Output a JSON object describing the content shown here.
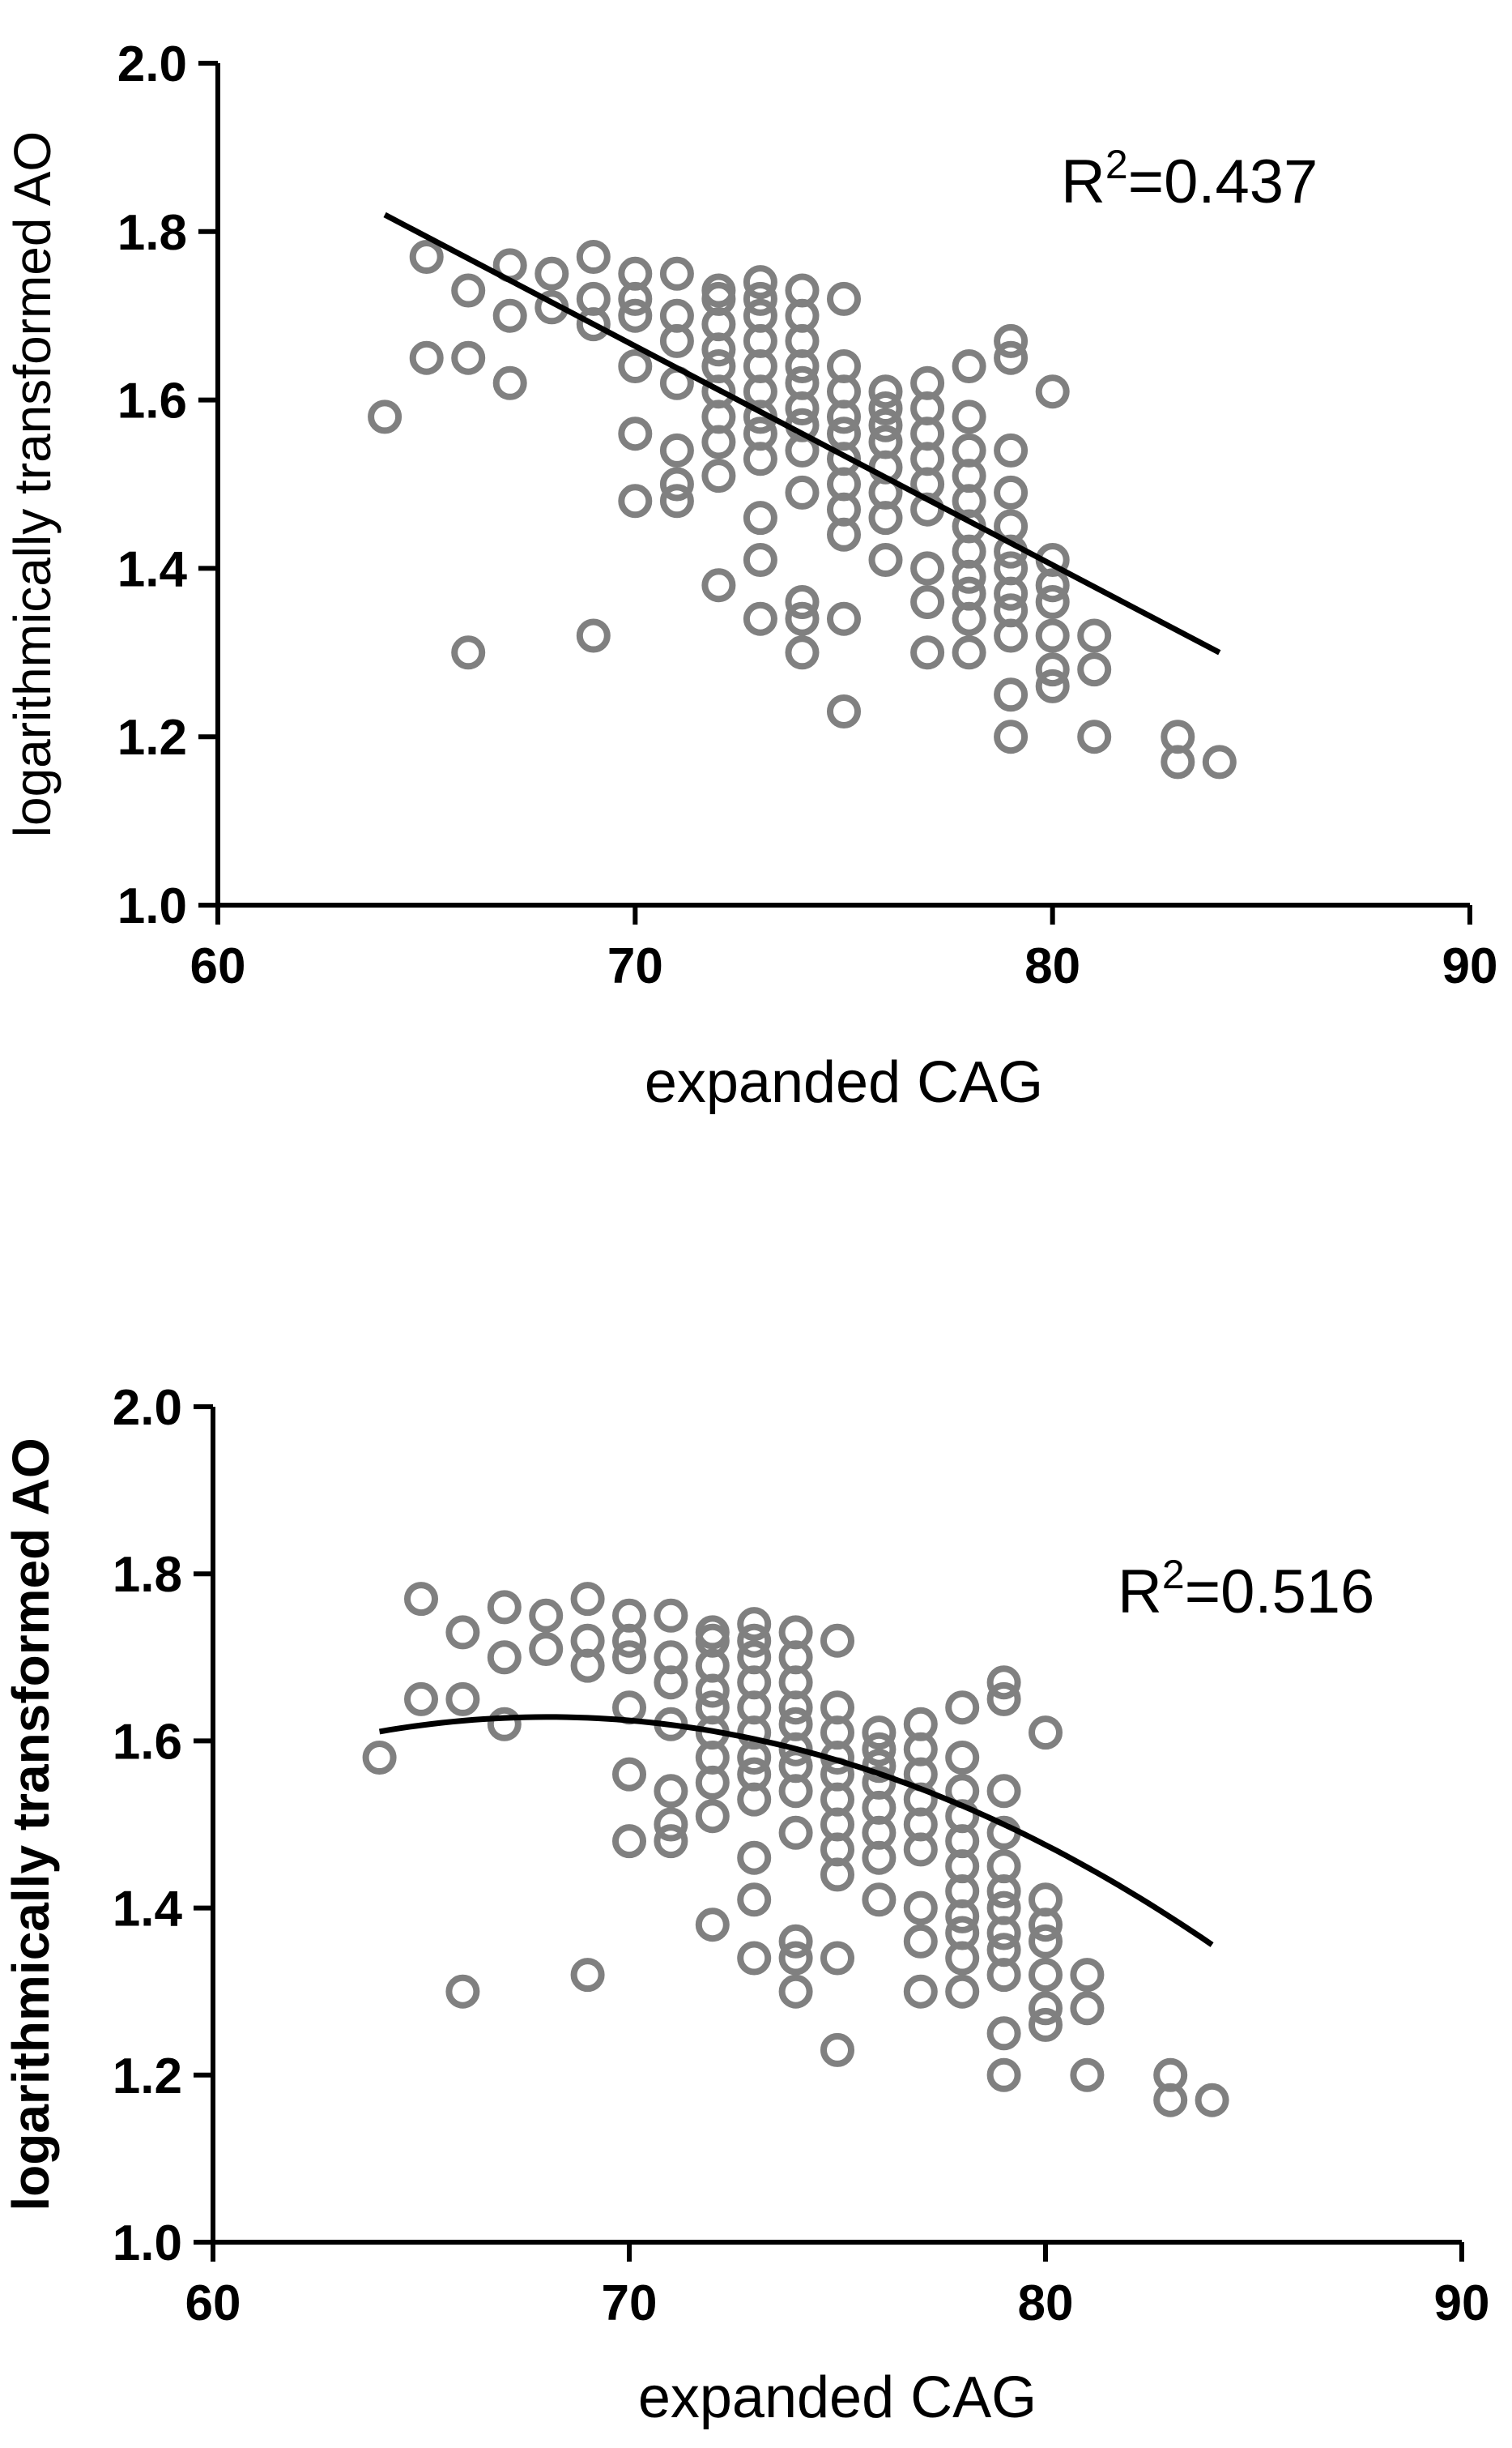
{
  "chart_data": [
    {
      "type": "scatter",
      "fit": "linear",
      "xlabel": "expanded CAG",
      "ylabel": "logarithmically transformed AO",
      "annotation": {
        "base": "R",
        "sup": "2",
        "rest": "=0.437"
      },
      "xlim": [
        60,
        90
      ],
      "ylim": [
        1.0,
        2.0
      ],
      "xticks": [
        "60",
        "70",
        "80",
        "90"
      ],
      "yticks": [
        "1.0",
        "1.2",
        "1.4",
        "1.6",
        "1.8",
        "2.0"
      ],
      "fit_coeffs": [
        3.484,
        -0.026
      ],
      "fit_range": [
        64,
        84
      ],
      "marker_color": "#808080",
      "line_color": "#000000",
      "points": [
        [
          64,
          1.58
        ],
        [
          65,
          1.77
        ],
        [
          65,
          1.65
        ],
        [
          66,
          1.73
        ],
        [
          66,
          1.65
        ],
        [
          66,
          1.3
        ],
        [
          67,
          1.76
        ],
        [
          67,
          1.7
        ],
        [
          67,
          1.62
        ],
        [
          68,
          1.75
        ],
        [
          68,
          1.71
        ],
        [
          69,
          1.77
        ],
        [
          69,
          1.72
        ],
        [
          69,
          1.69
        ],
        [
          69,
          1.32
        ],
        [
          70,
          1.75
        ],
        [
          70,
          1.72
        ],
        [
          70,
          1.7
        ],
        [
          70,
          1.64
        ],
        [
          70,
          1.56
        ],
        [
          70,
          1.48
        ],
        [
          71,
          1.75
        ],
        [
          71,
          1.7
        ],
        [
          71,
          1.67
        ],
        [
          71,
          1.62
        ],
        [
          71,
          1.54
        ],
        [
          71,
          1.5
        ],
        [
          71,
          1.48
        ],
        [
          72,
          1.73
        ],
        [
          72,
          1.72
        ],
        [
          72,
          1.69
        ],
        [
          72,
          1.66
        ],
        [
          72,
          1.64
        ],
        [
          72,
          1.61
        ],
        [
          72,
          1.58
        ],
        [
          72,
          1.55
        ],
        [
          72,
          1.51
        ],
        [
          72,
          1.38
        ],
        [
          73,
          1.74
        ],
        [
          73,
          1.72
        ],
        [
          73,
          1.7
        ],
        [
          73,
          1.67
        ],
        [
          73,
          1.64
        ],
        [
          73,
          1.61
        ],
        [
          73,
          1.58
        ],
        [
          73,
          1.56
        ],
        [
          73,
          1.53
        ],
        [
          73,
          1.46
        ],
        [
          73,
          1.41
        ],
        [
          73,
          1.34
        ],
        [
          74,
          1.73
        ],
        [
          74,
          1.7
        ],
        [
          74,
          1.67
        ],
        [
          74,
          1.64
        ],
        [
          74,
          1.62
        ],
        [
          74,
          1.59
        ],
        [
          74,
          1.57
        ],
        [
          74,
          1.54
        ],
        [
          74,
          1.49
        ],
        [
          74,
          1.36
        ],
        [
          74,
          1.34
        ],
        [
          74,
          1.3
        ],
        [
          75,
          1.72
        ],
        [
          75,
          1.64
        ],
        [
          75,
          1.61
        ],
        [
          75,
          1.58
        ],
        [
          75,
          1.56
        ],
        [
          75,
          1.53
        ],
        [
          75,
          1.5
        ],
        [
          75,
          1.47
        ],
        [
          75,
          1.44
        ],
        [
          75,
          1.34
        ],
        [
          75,
          1.23
        ],
        [
          76,
          1.61
        ],
        [
          76,
          1.59
        ],
        [
          76,
          1.57
        ],
        [
          76,
          1.55
        ],
        [
          76,
          1.52
        ],
        [
          76,
          1.49
        ],
        [
          76,
          1.46
        ],
        [
          76,
          1.41
        ],
        [
          77,
          1.62
        ],
        [
          77,
          1.59
        ],
        [
          77,
          1.56
        ],
        [
          77,
          1.53
        ],
        [
          77,
          1.5
        ],
        [
          77,
          1.47
        ],
        [
          77,
          1.4
        ],
        [
          77,
          1.36
        ],
        [
          77,
          1.3
        ],
        [
          78,
          1.64
        ],
        [
          78,
          1.58
        ],
        [
          78,
          1.54
        ],
        [
          78,
          1.51
        ],
        [
          78,
          1.48
        ],
        [
          78,
          1.45
        ],
        [
          78,
          1.42
        ],
        [
          78,
          1.39
        ],
        [
          78,
          1.37
        ],
        [
          78,
          1.34
        ],
        [
          78,
          1.3
        ],
        [
          79,
          1.67
        ],
        [
          79,
          1.65
        ],
        [
          79,
          1.54
        ],
        [
          79,
          1.49
        ],
        [
          79,
          1.45
        ],
        [
          79,
          1.42
        ],
        [
          79,
          1.4
        ],
        [
          79,
          1.37
        ],
        [
          79,
          1.35
        ],
        [
          79,
          1.32
        ],
        [
          79,
          1.25
        ],
        [
          79,
          1.2
        ],
        [
          80,
          1.61
        ],
        [
          80,
          1.41
        ],
        [
          80,
          1.38
        ],
        [
          80,
          1.36
        ],
        [
          80,
          1.32
        ],
        [
          80,
          1.28
        ],
        [
          80,
          1.26
        ],
        [
          81,
          1.32
        ],
        [
          81,
          1.28
        ],
        [
          81,
          1.2
        ],
        [
          83,
          1.2
        ],
        [
          83,
          1.17
        ],
        [
          84,
          1.17
        ]
      ]
    },
    {
      "type": "scatter",
      "fit": "quadratic",
      "xlabel": "expanded CAG",
      "ylabel": "logarithmically transformed AO",
      "annotation": {
        "base": "R",
        "sup": "2",
        "rest": "=0.516"
      },
      "xlim": [
        60,
        90
      ],
      "ylim": [
        1.0,
        2.0
      ],
      "xticks": [
        "60",
        "70",
        "80",
        "90"
      ],
      "yticks": [
        "1.0",
        "1.2",
        "1.4",
        "1.6",
        "1.8",
        "2.0"
      ],
      "fit_coeffs": [
        -3.3245,
        0.1456,
        -0.00107
      ],
      "fit_range": [
        64,
        84
      ],
      "marker_color": "#808080",
      "line_color": "#000000",
      "points": [
        [
          64,
          1.58
        ],
        [
          65,
          1.77
        ],
        [
          65,
          1.65
        ],
        [
          66,
          1.73
        ],
        [
          66,
          1.65
        ],
        [
          66,
          1.3
        ],
        [
          67,
          1.76
        ],
        [
          67,
          1.7
        ],
        [
          67,
          1.62
        ],
        [
          68,
          1.75
        ],
        [
          68,
          1.71
        ],
        [
          69,
          1.77
        ],
        [
          69,
          1.72
        ],
        [
          69,
          1.69
        ],
        [
          69,
          1.32
        ],
        [
          70,
          1.75
        ],
        [
          70,
          1.72
        ],
        [
          70,
          1.7
        ],
        [
          70,
          1.64
        ],
        [
          70,
          1.56
        ],
        [
          70,
          1.48
        ],
        [
          71,
          1.75
        ],
        [
          71,
          1.7
        ],
        [
          71,
          1.67
        ],
        [
          71,
          1.62
        ],
        [
          71,
          1.54
        ],
        [
          71,
          1.5
        ],
        [
          71,
          1.48
        ],
        [
          72,
          1.73
        ],
        [
          72,
          1.72
        ],
        [
          72,
          1.69
        ],
        [
          72,
          1.66
        ],
        [
          72,
          1.64
        ],
        [
          72,
          1.61
        ],
        [
          72,
          1.58
        ],
        [
          72,
          1.55
        ],
        [
          72,
          1.51
        ],
        [
          72,
          1.38
        ],
        [
          73,
          1.74
        ],
        [
          73,
          1.72
        ],
        [
          73,
          1.7
        ],
        [
          73,
          1.67
        ],
        [
          73,
          1.64
        ],
        [
          73,
          1.61
        ],
        [
          73,
          1.58
        ],
        [
          73,
          1.56
        ],
        [
          73,
          1.53
        ],
        [
          73,
          1.46
        ],
        [
          73,
          1.41
        ],
        [
          73,
          1.34
        ],
        [
          74,
          1.73
        ],
        [
          74,
          1.7
        ],
        [
          74,
          1.67
        ],
        [
          74,
          1.64
        ],
        [
          74,
          1.62
        ],
        [
          74,
          1.59
        ],
        [
          74,
          1.57
        ],
        [
          74,
          1.54
        ],
        [
          74,
          1.49
        ],
        [
          74,
          1.36
        ],
        [
          74,
          1.34
        ],
        [
          74,
          1.3
        ],
        [
          75,
          1.72
        ],
        [
          75,
          1.64
        ],
        [
          75,
          1.61
        ],
        [
          75,
          1.58
        ],
        [
          75,
          1.56
        ],
        [
          75,
          1.53
        ],
        [
          75,
          1.5
        ],
        [
          75,
          1.47
        ],
        [
          75,
          1.44
        ],
        [
          75,
          1.34
        ],
        [
          75,
          1.23
        ],
        [
          76,
          1.61
        ],
        [
          76,
          1.59
        ],
        [
          76,
          1.57
        ],
        [
          76,
          1.55
        ],
        [
          76,
          1.52
        ],
        [
          76,
          1.49
        ],
        [
          76,
          1.46
        ],
        [
          76,
          1.41
        ],
        [
          77,
          1.62
        ],
        [
          77,
          1.59
        ],
        [
          77,
          1.56
        ],
        [
          77,
          1.53
        ],
        [
          77,
          1.5
        ],
        [
          77,
          1.47
        ],
        [
          77,
          1.4
        ],
        [
          77,
          1.36
        ],
        [
          77,
          1.3
        ],
        [
          78,
          1.64
        ],
        [
          78,
          1.58
        ],
        [
          78,
          1.54
        ],
        [
          78,
          1.51
        ],
        [
          78,
          1.48
        ],
        [
          78,
          1.45
        ],
        [
          78,
          1.42
        ],
        [
          78,
          1.39
        ],
        [
          78,
          1.37
        ],
        [
          78,
          1.34
        ],
        [
          78,
          1.3
        ],
        [
          79,
          1.67
        ],
        [
          79,
          1.65
        ],
        [
          79,
          1.54
        ],
        [
          79,
          1.49
        ],
        [
          79,
          1.45
        ],
        [
          79,
          1.42
        ],
        [
          79,
          1.4
        ],
        [
          79,
          1.37
        ],
        [
          79,
          1.35
        ],
        [
          79,
          1.32
        ],
        [
          79,
          1.25
        ],
        [
          79,
          1.2
        ],
        [
          80,
          1.61
        ],
        [
          80,
          1.41
        ],
        [
          80,
          1.38
        ],
        [
          80,
          1.36
        ],
        [
          80,
          1.32
        ],
        [
          80,
          1.28
        ],
        [
          80,
          1.26
        ],
        [
          81,
          1.32
        ],
        [
          81,
          1.28
        ],
        [
          81,
          1.2
        ],
        [
          83,
          1.2
        ],
        [
          83,
          1.17
        ],
        [
          84,
          1.17
        ]
      ]
    }
  ]
}
